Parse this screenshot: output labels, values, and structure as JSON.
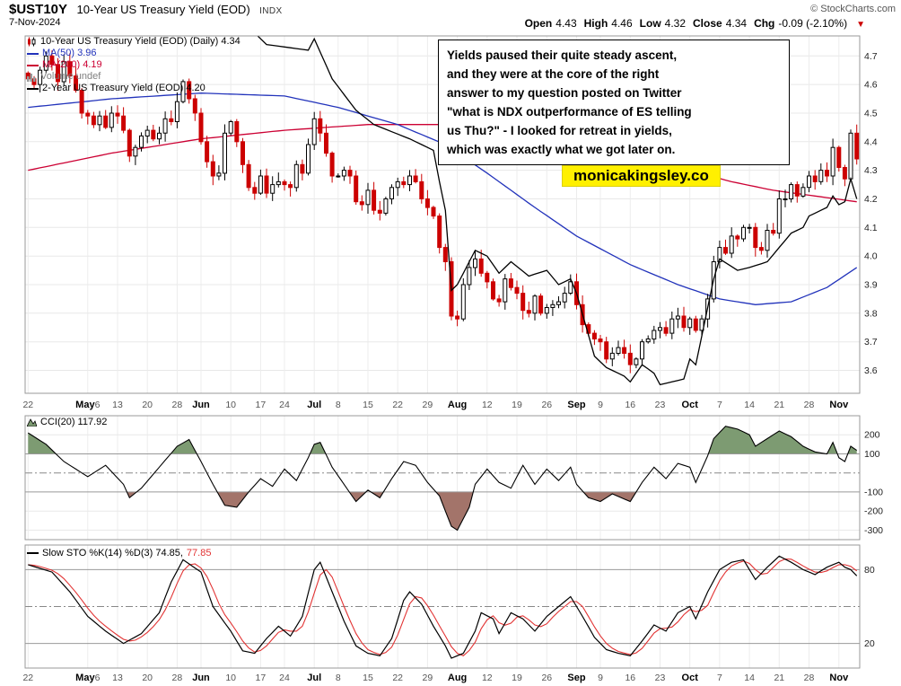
{
  "header": {
    "symbol": "$UST10Y",
    "title": "10-Year US Treasury Yield (EOD)",
    "exchange": "INDX",
    "date": "7-Nov-2024",
    "copyright": "© StockCharts.com",
    "quote": {
      "open_label": "Open",
      "open": "4.43",
      "high_label": "High",
      "high": "4.46",
      "low_label": "Low",
      "low": "4.32",
      "close_label": "Close",
      "close": "4.34",
      "chg_label": "Chg",
      "chg": "-0.09 (-2.10%)",
      "down_arrow": "▼"
    }
  },
  "legend": {
    "main": [
      {
        "label": "10-Year US Treasury Yield (EOD) (Daily) 4.34",
        "color": "#000000"
      },
      {
        "label": "MA(50) 3.96",
        "color": "#2233bb"
      },
      {
        "label": "MA(200) 4.19",
        "color": "#cc0033"
      },
      {
        "label": "Volume undef",
        "color": "#808080"
      },
      {
        "label": "2-Year US Treasury Yield (EOD) 4.20",
        "color": "#000000"
      }
    ],
    "cci_label": "CCI(20) 117.92",
    "sto_k": "Slow STO %K(14) %D(3) 74.85,",
    "sto_d": "77.85"
  },
  "annotation": {
    "text": "Yields paused their quite steady ascent,\nand they were at the core of the right\nanswer to my question posted on Twitter\n\"what is NDX outperformance of ES telling\nus Thu?\" - I looked for retreat in yields,\nwhich was exactly what we got later on."
  },
  "watermark": {
    "text": "monicakingsley.co",
    "bg": "#fff000"
  },
  "chart_data": [
    {
      "type": "candlestick",
      "title": "10-Year US Treasury Yield (EOD) (Daily)",
      "last_close": 4.34,
      "last_ohlc": {
        "open": 4.43,
        "high": 4.46,
        "low": 4.32,
        "close": 4.34
      },
      "ylim": [
        3.52,
        4.77
      ],
      "y_ticks": [
        4.7,
        4.6,
        4.5,
        4.4,
        4.3,
        4.2,
        4.1,
        4.0,
        3.9,
        3.8,
        3.7,
        3.6
      ],
      "colors": {
        "up": "#000000",
        "down": "#cc0000",
        "ma50": "#2233bb",
        "ma200": "#cc0033",
        "two_year": "#000000"
      },
      "x_ticks": [
        {
          "d": "22",
          "i": 0
        },
        {
          "m": "May",
          "d": "6",
          "i": 10
        },
        {
          "d": "13",
          "i": 15
        },
        {
          "d": "20",
          "i": 20
        },
        {
          "d": "28",
          "i": 25
        },
        {
          "m": "Jun",
          "i": 29
        },
        {
          "d": "10",
          "i": 34
        },
        {
          "d": "17",
          "i": 39
        },
        {
          "d": "24",
          "i": 43
        },
        {
          "m": "Jul",
          "i": 48
        },
        {
          "d": "8",
          "i": 52
        },
        {
          "d": "15",
          "i": 57
        },
        {
          "d": "22",
          "i": 62
        },
        {
          "d": "29",
          "i": 67
        },
        {
          "m": "Aug",
          "i": 72
        },
        {
          "d": "12",
          "i": 77
        },
        {
          "d": "19",
          "i": 82
        },
        {
          "d": "26",
          "i": 87
        },
        {
          "m": "Sep",
          "i": 92
        },
        {
          "d": "9",
          "i": 96
        },
        {
          "d": "16",
          "i": 101
        },
        {
          "d": "23",
          "i": 106
        },
        {
          "m": "Oct",
          "i": 111
        },
        {
          "d": "7",
          "i": 116
        },
        {
          "d": "14",
          "i": 121
        },
        {
          "d": "21",
          "i": 126
        },
        {
          "d": "28",
          "i": 131
        },
        {
          "m": "Nov",
          "i": 136
        }
      ],
      "closes": [
        4.62,
        4.6,
        4.65,
        4.7,
        4.67,
        4.61,
        4.68,
        4.63,
        4.58,
        4.5,
        4.49,
        4.46,
        4.49,
        4.45,
        4.5,
        4.49,
        4.44,
        4.35,
        4.38,
        4.42,
        4.44,
        4.41,
        4.43,
        4.48,
        4.47,
        4.54,
        4.61,
        4.55,
        4.5,
        4.4,
        4.33,
        4.28,
        4.29,
        4.43,
        4.47,
        4.4,
        4.32,
        4.24,
        4.22,
        4.28,
        4.22,
        4.25,
        4.26,
        4.25,
        4.24,
        4.32,
        4.29,
        4.39,
        4.48,
        4.43,
        4.36,
        4.28,
        4.28,
        4.3,
        4.28,
        4.19,
        4.18,
        4.23,
        4.16,
        4.15,
        4.2,
        4.24,
        4.26,
        4.25,
        4.28,
        4.26,
        4.2,
        4.17,
        4.14,
        4.03,
        3.98,
        3.79,
        3.78,
        3.9,
        3.96,
        3.99,
        3.94,
        3.91,
        3.85,
        3.84,
        3.92,
        3.89,
        3.87,
        3.81,
        3.8,
        3.86,
        3.8,
        3.82,
        3.83,
        3.84,
        3.87,
        3.91,
        3.83,
        3.76,
        3.73,
        3.71,
        3.7,
        3.64,
        3.66,
        3.68,
        3.66,
        3.62,
        3.64,
        3.7,
        3.71,
        3.74,
        3.75,
        3.73,
        3.78,
        3.79,
        3.75,
        3.78,
        3.74,
        3.78,
        3.85,
        3.98,
        4.03,
        4.01,
        4.07,
        4.06,
        4.1,
        4.1,
        4.03,
        4.02,
        4.09,
        4.08,
        4.2,
        4.2,
        4.25,
        4.21,
        4.24,
        4.28,
        4.26,
        4.3,
        4.28,
        4.38,
        4.31,
        4.27,
        4.43,
        4.34
      ],
      "ma50": {
        "name": "MA(50)",
        "last": 3.96,
        "points": [
          [
            0,
            4.52
          ],
          [
            14,
            4.55
          ],
          [
            29,
            4.57
          ],
          [
            43,
            4.56
          ],
          [
            52,
            4.52
          ],
          [
            62,
            4.46
          ],
          [
            70,
            4.39
          ],
          [
            77,
            4.29
          ],
          [
            85,
            4.17
          ],
          [
            92,
            4.07
          ],
          [
            101,
            3.97
          ],
          [
            109,
            3.9
          ],
          [
            116,
            3.85
          ],
          [
            122,
            3.83
          ],
          [
            128,
            3.84
          ],
          [
            134,
            3.89
          ],
          [
            139,
            3.96
          ]
        ]
      },
      "ma200": {
        "name": "MA(200)",
        "last": 4.19,
        "points": [
          [
            0,
            4.3
          ],
          [
            14,
            4.36
          ],
          [
            29,
            4.41
          ],
          [
            43,
            4.44
          ],
          [
            57,
            4.46
          ],
          [
            70,
            4.46
          ],
          [
            82,
            4.43
          ],
          [
            92,
            4.4
          ],
          [
            101,
            4.36
          ],
          [
            111,
            4.3
          ],
          [
            118,
            4.26
          ],
          [
            125,
            4.23
          ],
          [
            132,
            4.21
          ],
          [
            139,
            4.19
          ]
        ]
      },
      "two_year": {
        "name": "2-Year US Treasury Yield (EOD)",
        "last": 4.2,
        "points": [
          [
            0,
            4.98
          ],
          [
            10,
            4.84
          ],
          [
            15,
            4.87
          ],
          [
            20,
            4.88
          ],
          [
            25,
            4.95
          ],
          [
            29,
            4.8
          ],
          [
            33,
            4.88
          ],
          [
            40,
            4.74
          ],
          [
            47,
            4.72
          ],
          [
            48,
            4.76
          ],
          [
            51,
            4.62
          ],
          [
            55,
            4.51
          ],
          [
            58,
            4.46
          ],
          [
            64,
            4.41
          ],
          [
            66,
            4.39
          ],
          [
            68,
            4.37
          ],
          [
            69,
            4.26
          ],
          [
            70,
            4.16
          ],
          [
            71,
            3.88
          ],
          [
            72,
            3.9
          ],
          [
            75,
            4.02
          ],
          [
            77,
            4.0
          ],
          [
            79,
            3.94
          ],
          [
            81,
            3.98
          ],
          [
            84,
            3.93
          ],
          [
            87,
            3.95
          ],
          [
            89,
            3.9
          ],
          [
            91,
            3.92
          ],
          [
            92,
            3.87
          ],
          [
            95,
            3.65
          ],
          [
            97,
            3.61
          ],
          [
            100,
            3.58
          ],
          [
            101,
            3.56
          ],
          [
            103,
            3.62
          ],
          [
            105,
            3.59
          ],
          [
            106,
            3.55
          ],
          [
            110,
            3.57
          ],
          [
            111,
            3.64
          ],
          [
            112,
            3.62
          ],
          [
            115,
            3.92
          ],
          [
            116,
            3.99
          ],
          [
            119,
            3.95
          ],
          [
            121,
            3.96
          ],
          [
            124,
            3.98
          ],
          [
            126,
            4.03
          ],
          [
            128,
            4.08
          ],
          [
            130,
            4.1
          ],
          [
            131,
            4.14
          ],
          [
            134,
            4.17
          ],
          [
            135,
            4.21
          ],
          [
            136,
            4.18
          ],
          [
            137,
            4.19
          ],
          [
            138,
            4.27
          ],
          [
            139,
            4.2
          ]
        ]
      }
    },
    {
      "type": "line",
      "name": "CCI(20)",
      "last": 117.92,
      "ylim": [
        -350,
        300
      ],
      "y_ticks": [
        200,
        100,
        -100,
        -200,
        -300
      ],
      "upper": 100,
      "lower": -100,
      "colors": {
        "line": "#000000",
        "fill_above": "#7d9b72",
        "fill_below": "#a3746a"
      },
      "points": [
        [
          0,
          210
        ],
        [
          3,
          150
        ],
        [
          6,
          60
        ],
        [
          10,
          -20
        ],
        [
          13,
          40
        ],
        [
          16,
          -60
        ],
        [
          17,
          -130
        ],
        [
          19,
          -80
        ],
        [
          22,
          30
        ],
        [
          25,
          140
        ],
        [
          27,
          175
        ],
        [
          29,
          60
        ],
        [
          31,
          -60
        ],
        [
          33,
          -170
        ],
        [
          35,
          -180
        ],
        [
          37,
          -100
        ],
        [
          39,
          -30
        ],
        [
          41,
          -70
        ],
        [
          43,
          20
        ],
        [
          45,
          -40
        ],
        [
          47,
          80
        ],
        [
          48,
          150
        ],
        [
          49,
          160
        ],
        [
          51,
          30
        ],
        [
          53,
          -60
        ],
        [
          55,
          -150
        ],
        [
          57,
          -90
        ],
        [
          59,
          -130
        ],
        [
          61,
          -30
        ],
        [
          63,
          60
        ],
        [
          65,
          40
        ],
        [
          67,
          -50
        ],
        [
          69,
          -120
        ],
        [
          71,
          -280
        ],
        [
          72,
          -300
        ],
        [
          74,
          -180
        ],
        [
          75,
          -60
        ],
        [
          77,
          20
        ],
        [
          79,
          -50
        ],
        [
          81,
          -80
        ],
        [
          83,
          40
        ],
        [
          85,
          -60
        ],
        [
          87,
          20
        ],
        [
          89,
          -40
        ],
        [
          91,
          30
        ],
        [
          92,
          -60
        ],
        [
          94,
          -130
        ],
        [
          96,
          -150
        ],
        [
          98,
          -110
        ],
        [
          101,
          -150
        ],
        [
          103,
          -50
        ],
        [
          105,
          30
        ],
        [
          107,
          -30
        ],
        [
          109,
          50
        ],
        [
          111,
          30
        ],
        [
          112,
          -50
        ],
        [
          114,
          90
        ],
        [
          115,
          180
        ],
        [
          117,
          245
        ],
        [
          119,
          230
        ],
        [
          121,
          200
        ],
        [
          122,
          140
        ],
        [
          124,
          180
        ],
        [
          126,
          220
        ],
        [
          128,
          190
        ],
        [
          130,
          140
        ],
        [
          132,
          110
        ],
        [
          134,
          100
        ],
        [
          135,
          160
        ],
        [
          136,
          80
        ],
        [
          137,
          60
        ],
        [
          138,
          140
        ],
        [
          139,
          118
        ]
      ]
    },
    {
      "type": "line",
      "name": "Slow STO %K(14) %D(3)",
      "k_last": 74.85,
      "d_last": 77.85,
      "ylim": [
        0,
        100
      ],
      "y_ticks": [
        80,
        20
      ],
      "mid": 50,
      "colors": {
        "k": "#000000",
        "d": "#e23333"
      },
      "k_points": [
        [
          0,
          84
        ],
        [
          4,
          78
        ],
        [
          7,
          62
        ],
        [
          10,
          42
        ],
        [
          13,
          30
        ],
        [
          16,
          20
        ],
        [
          19,
          28
        ],
        [
          22,
          45
        ],
        [
          24,
          70
        ],
        [
          26,
          88
        ],
        [
          29,
          78
        ],
        [
          31,
          50
        ],
        [
          34,
          30
        ],
        [
          36,
          14
        ],
        [
          38,
          12
        ],
        [
          40,
          24
        ],
        [
          42,
          34
        ],
        [
          44,
          26
        ],
        [
          46,
          42
        ],
        [
          48,
          80
        ],
        [
          49,
          86
        ],
        [
          51,
          62
        ],
        [
          53,
          38
        ],
        [
          55,
          18
        ],
        [
          57,
          12
        ],
        [
          59,
          10
        ],
        [
          61,
          24
        ],
        [
          63,
          55
        ],
        [
          64,
          62
        ],
        [
          66,
          52
        ],
        [
          68,
          34
        ],
        [
          70,
          18
        ],
        [
          71,
          8
        ],
        [
          73,
          12
        ],
        [
          75,
          30
        ],
        [
          76,
          45
        ],
        [
          78,
          40
        ],
        [
          79,
          28
        ],
        [
          81,
          45
        ],
        [
          83,
          40
        ],
        [
          85,
          30
        ],
        [
          87,
          42
        ],
        [
          89,
          50
        ],
        [
          91,
          58
        ],
        [
          93,
          42
        ],
        [
          95,
          25
        ],
        [
          97,
          15
        ],
        [
          99,
          12
        ],
        [
          101,
          10
        ],
        [
          103,
          22
        ],
        [
          105,
          35
        ],
        [
          107,
          30
        ],
        [
          109,
          45
        ],
        [
          111,
          50
        ],
        [
          112,
          40
        ],
        [
          114,
          62
        ],
        [
          116,
          80
        ],
        [
          118,
          86
        ],
        [
          120,
          88
        ],
        [
          122,
          72
        ],
        [
          124,
          82
        ],
        [
          126,
          91
        ],
        [
          128,
          86
        ],
        [
          130,
          80
        ],
        [
          132,
          76
        ],
        [
          134,
          82
        ],
        [
          136,
          86
        ],
        [
          137,
          82
        ],
        [
          138,
          80
        ],
        [
          139,
          75
        ]
      ]
    }
  ]
}
